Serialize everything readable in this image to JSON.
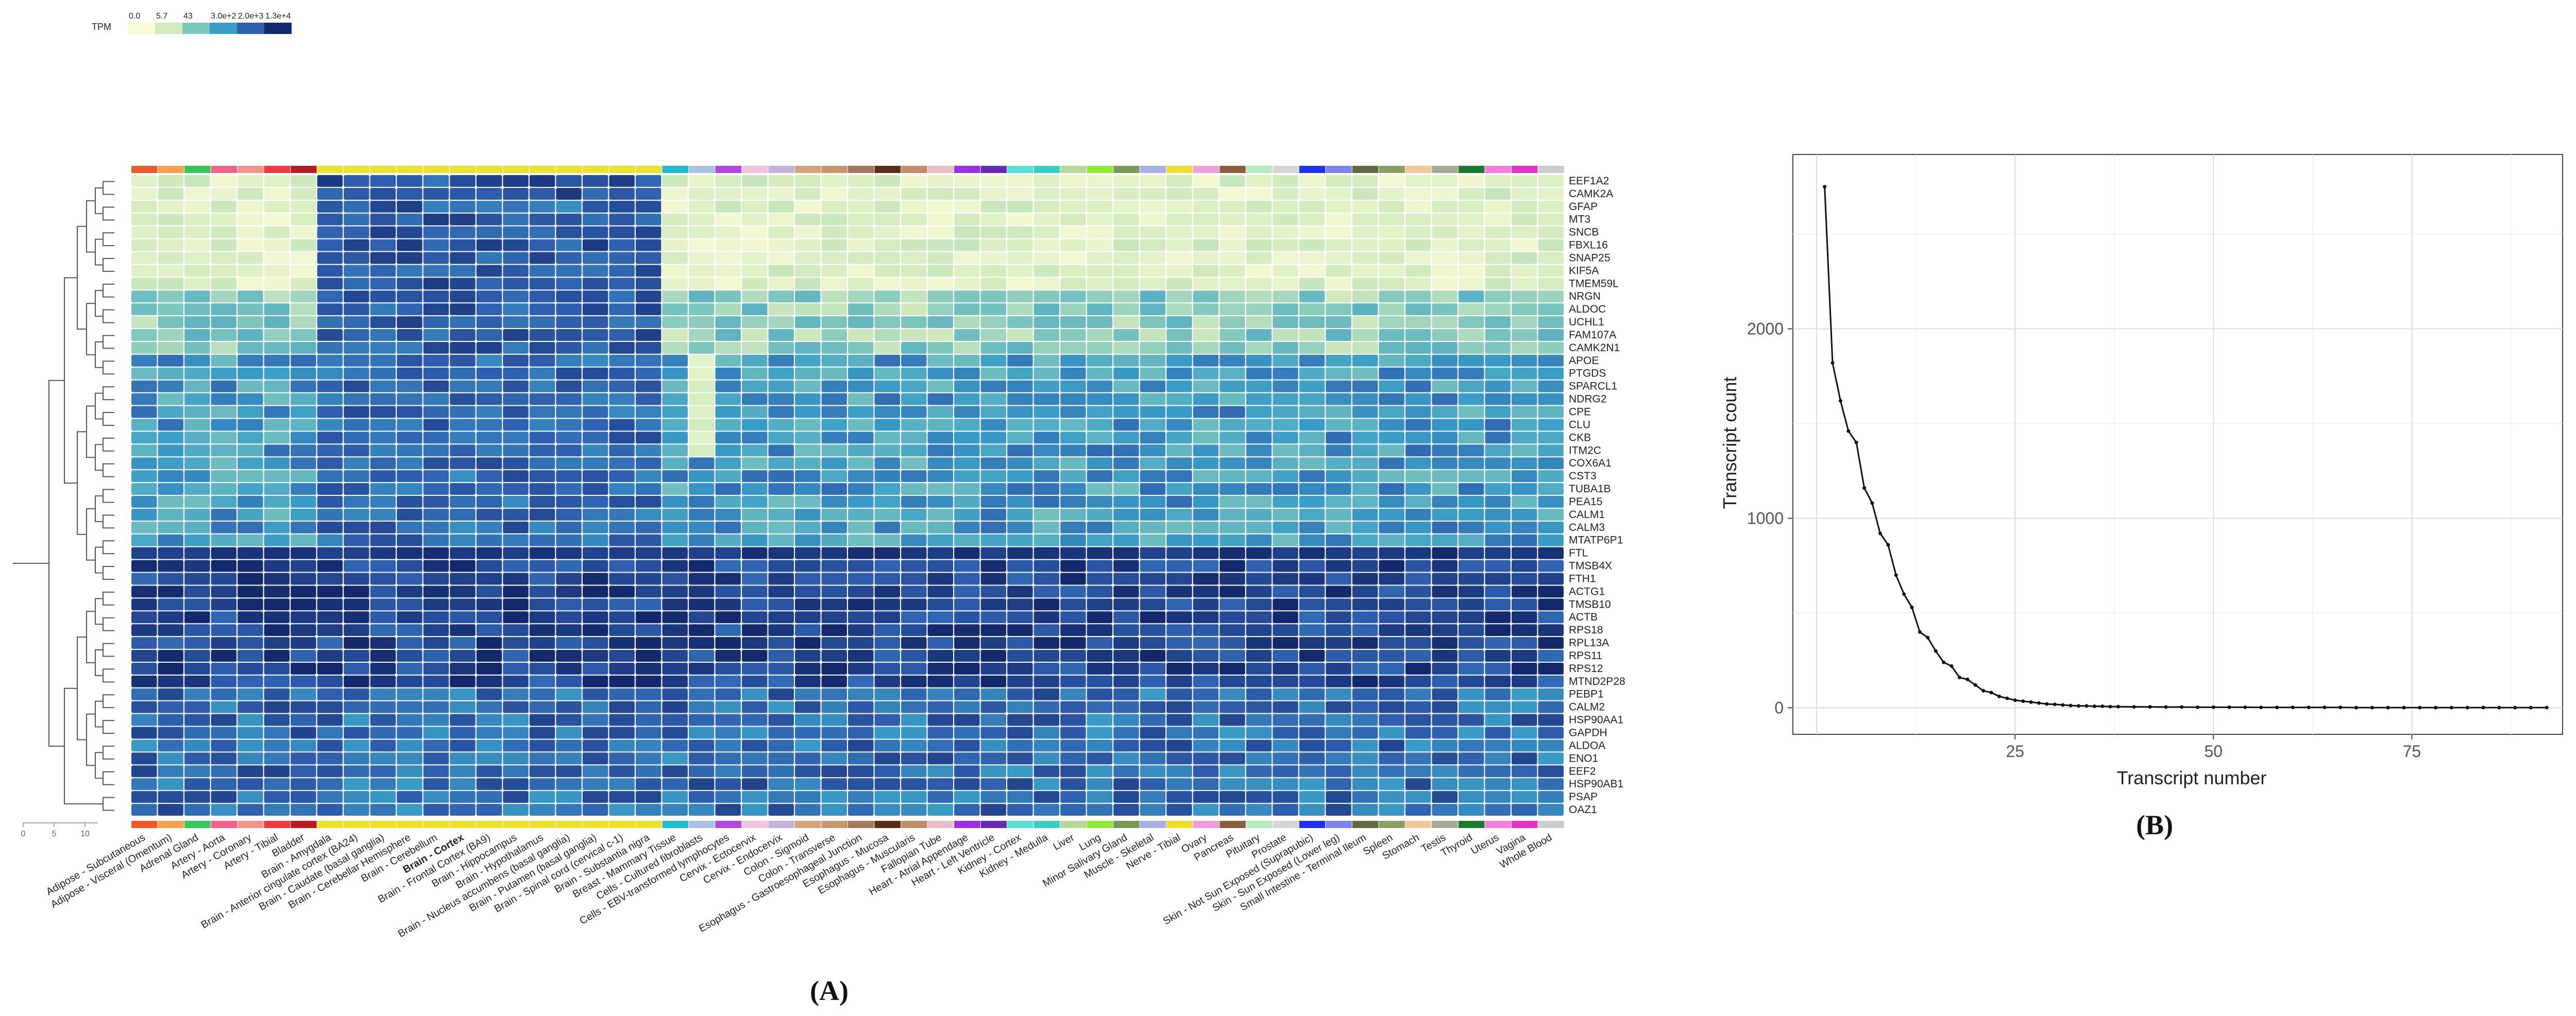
{
  "legend": {
    "title": "TPM",
    "breaks": [
      "0.0",
      "5.7",
      "43",
      "3.0e+2",
      "2.0e+3",
      "1.3e+4"
    ],
    "colors": [
      "#f9fbd6",
      "#d2eabd",
      "#7fc7bd",
      "#3a9dc6",
      "#2f5eae",
      "#14296b"
    ]
  },
  "panel_labels": {
    "a": "(A)",
    "b": "(B)"
  },
  "colors": {
    "tissue_colors": [
      "#f05a28",
      "#f7a24a",
      "#34c759",
      "#f2628a",
      "#f5948a",
      "#ee3a3c",
      "#b81a24",
      "#ede12d",
      "#ede12d",
      "#ede12d",
      "#ede12d",
      "#ede12d",
      "#ede12d",
      "#ede12d",
      "#ede12d",
      "#ede12d",
      "#ede12d",
      "#ede12d",
      "#ede12d",
      "#ede12d",
      "#1fbcd0",
      "#a8c0e2",
      "#b146e0",
      "#f0c4da",
      "#c4b2da",
      "#d6a27a",
      "#c7976a",
      "#a4785a",
      "#5a2d16",
      "#c48b69",
      "#e6bec6",
      "#9b30e3",
      "#6a2ab0",
      "#56e0d6",
      "#37cfc4",
      "#b8d89a",
      "#90e838",
      "#7a9a58",
      "#a8aee6",
      "#f0de2e",
      "#ee9ddf",
      "#8b5e3c",
      "#b4ecc0",
      "#d6d6d6",
      "#1f34e6",
      "#7a86ee",
      "#5e6b3e",
      "#8aa05e",
      "#f0c89a",
      "#a8a89a",
      "#1c7a30",
      "#f27ee0",
      "#e233c4"
    ]
  },
  "chart_data": [
    {
      "type": "heatmap",
      "legend_title": "TPM",
      "tissues": [
        "Adipose - Subcutaneous",
        "Adipose - Visceral (Omentum)",
        "Adrenal Gland",
        "Artery - Aorta",
        "Artery - Coronary",
        "Artery - Tibial",
        "Bladder",
        "Brain - Amygdala",
        "Brain - Anterior cingulate cortex (BA24)",
        "Brain - Caudate (basal ganglia)",
        "Brain - Cerebellar Hemisphere",
        "Brain - Cerebellum",
        "Brain - Cortex",
        "Brain - Frontal Cortex (BA9)",
        "Brain - Hippocampus",
        "Brain - Hypothalamus",
        "Brain - Nucleus accumbens (basal ganglia)",
        "Brain - Putamen (basal ganglia)",
        "Brain - Spinal cord (cervical c-1)",
        "Brain - Substantia nigra",
        "Breast - Mammary Tissue",
        "Cells - Cultured fibroblasts",
        "Cells - EBV-transformed lymphocytes",
        "Cervix - Ectocervix",
        "Cervix - Endocervix",
        "Colon - Sigmoid",
        "Colon - Transverse",
        "Esophagus - Gastroesophageal Junction",
        "Esophagus - Mucosa",
        "Esophagus - Muscularis",
        "Fallopian Tube",
        "Heart - Atrial Appendage",
        "Heart - Left Ventricle",
        "Kidney - Cortex",
        "Kidney - Medulla",
        "Liver",
        "Lung",
        "Minor Salivary Gland",
        "Muscle - Skeletal",
        "Nerve - Tibial",
        "Ovary",
        "Pancreas",
        "Pituitary",
        "Prostate",
        "Skin - Not Sun Exposed (Suprapubic)",
        "Skin - Sun Exposed (Lower leg)",
        "Small Intestine - Terminal Ileum",
        "Spleen",
        "Stomach",
        "Testis",
        "Thyroid",
        "Uterus",
        "Vagina",
        "Whole Blood"
      ],
      "highlighted_tissue": "Brain - Cortex",
      "genes": [
        "EEF1A2",
        "CAMK2A",
        "GFAP",
        "MT3",
        "SNCB",
        "FBXL16",
        "SNAP25",
        "KIF5A",
        "TMEM59L",
        "NRGN",
        "ALDOC",
        "UCHL1",
        "FAM107A",
        "CAMK2N1",
        "APOE",
        "PTGDS",
        "SPARCL1",
        "NDRG2",
        "CPE",
        "CLU",
        "CKB",
        "ITM2C",
        "COX6A1",
        "CST3",
        "TUBA1B",
        "PEA15",
        "CALM1",
        "CALM3",
        "MTATP6P1",
        "FTL",
        "TMSB4X",
        "FTH1",
        "ACTG1",
        "TMSB10",
        "ACTB",
        "RPS18",
        "RPL13A",
        "RPS11",
        "RPS12",
        "MTND2P28",
        "PEBP1",
        "CALM2",
        "HSP90AA1",
        "GAPDH",
        "ALDOA",
        "ENO1",
        "EEF2",
        "HSP90AB1",
        "PSAP",
        "OAZ1"
      ],
      "dendrogram_axis_ticks": [
        "0",
        "5",
        "10"
      ]
    },
    {
      "type": "line",
      "xlabel": "Transcript number",
      "ylabel": "Transcript count",
      "xlim": [
        -3,
        94
      ],
      "ylim": [
        -140,
        2920
      ],
      "xticks": [
        "25",
        "50",
        "75"
      ],
      "xtick_values": [
        25,
        50,
        75
      ],
      "yticks": [
        "0",
        "1000",
        "2000"
      ],
      "ytick_values": [
        0,
        1000,
        2000
      ],
      "x": [
        1,
        2,
        3,
        4,
        5,
        6,
        7,
        8,
        9,
        10,
        11,
        12,
        13,
        14,
        15,
        16,
        17,
        18,
        19,
        20,
        21,
        22,
        23,
        24,
        25,
        26,
        27,
        28,
        29,
        30,
        31,
        32,
        33,
        34,
        35,
        36,
        37,
        38,
        40,
        42,
        44,
        46,
        48,
        50,
        52,
        54,
        56,
        58,
        60,
        62,
        64,
        66,
        68,
        70,
        72,
        74,
        76,
        78,
        80,
        82,
        84,
        86,
        88,
        90,
        92
      ],
      "values": [
        2750,
        1820,
        1620,
        1460,
        1400,
        1160,
        1080,
        920,
        860,
        700,
        600,
        530,
        400,
        370,
        300,
        240,
        220,
        160,
        150,
        120,
        90,
        80,
        60,
        50,
        40,
        35,
        30,
        25,
        20,
        18,
        15,
        12,
        10,
        10,
        8,
        8,
        6,
        6,
        5,
        5,
        4,
        4,
        3,
        3,
        3,
        3,
        2,
        2,
        2,
        2,
        2,
        2,
        1,
        1,
        1,
        1,
        1,
        1,
        1,
        1,
        1,
        1,
        1,
        1,
        1
      ]
    }
  ]
}
